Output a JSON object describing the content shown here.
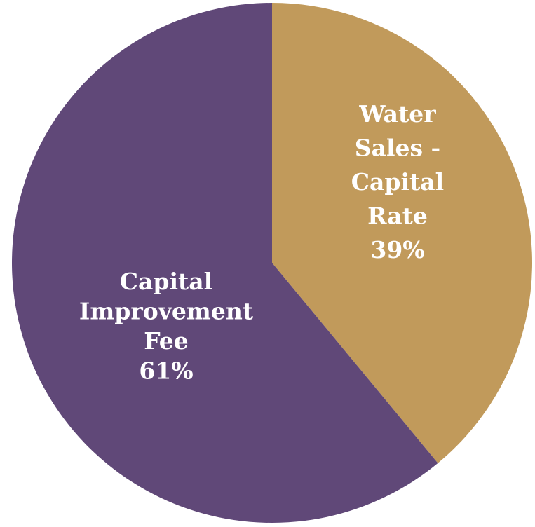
{
  "chart_data": {
    "type": "pie",
    "slices": [
      {
        "label_lines": [
          "Water",
          "Sales -",
          "Capital",
          "Rate"
        ],
        "value_label": "39%",
        "value": 39,
        "color": "#C19A5B"
      },
      {
        "label_lines": [
          "Capital",
          "Improvement",
          "Fee"
        ],
        "value_label": "61%",
        "value": 61,
        "color": "#604878"
      }
    ]
  }
}
